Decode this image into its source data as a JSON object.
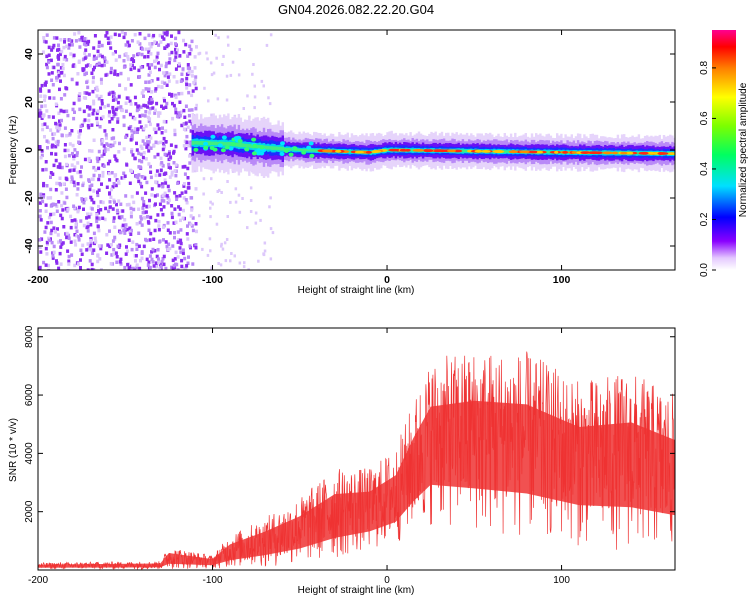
{
  "title": "GN04.2026.082.22.20.G04",
  "chart_data": [
    {
      "type": "heatmap",
      "name": "spectrogram",
      "xlabel": "Height of straight line (km)",
      "ylabel": "Frequency (Hz)",
      "xlim": [
        -200,
        165
      ],
      "ylim": [
        -50,
        50
      ],
      "xticks": [
        -200,
        -100,
        0,
        100
      ],
      "yticks": [
        -40,
        -20,
        0,
        20,
        40
      ],
      "colorbar": {
        "label": "Normalized spectral amplitude",
        "range": [
          0,
          0.95
        ],
        "ticks": [
          "0.0",
          "0.2",
          "0.4",
          "0.6",
          "0.8"
        ]
      },
      "signal_band": {
        "center_hz": [
          {
            "x": -110,
            "f": 3
          },
          {
            "x": -90,
            "f": 2.5
          },
          {
            "x": -70,
            "f": 1
          },
          {
            "x": -50,
            "f": 0
          },
          {
            "x": -10,
            "f": -1
          },
          {
            "x": 0,
            "f": 0
          },
          {
            "x": 50,
            "f": -0.5
          },
          {
            "x": 100,
            "f": -1
          },
          {
            "x": 165,
            "f": -1.5
          }
        ],
        "noise_region_until_km": -110
      }
    },
    {
      "type": "line",
      "name": "snr",
      "xlabel": "Height of straight line (km)",
      "ylabel": "SNR (10 * v/v)",
      "xlim": [
        -200,
        165
      ],
      "ylim": [
        0,
        8300
      ],
      "xticks": [
        -200,
        -100,
        0,
        100
      ],
      "yticks": [
        2000,
        4000,
        6000,
        8000
      ],
      "color": "#ee3333",
      "envelope": [
        {
          "x": -200,
          "low": 20,
          "high": 250
        },
        {
          "x": -130,
          "low": 20,
          "high": 300
        },
        {
          "x": -125,
          "low": 20,
          "high": 800
        },
        {
          "x": -100,
          "low": 50,
          "high": 500
        },
        {
          "x": -90,
          "low": 50,
          "high": 1200
        },
        {
          "x": -70,
          "low": 80,
          "high": 1800
        },
        {
          "x": -50,
          "low": 150,
          "high": 2500
        },
        {
          "x": -30,
          "low": 300,
          "high": 3500
        },
        {
          "x": -10,
          "low": 600,
          "high": 3500
        },
        {
          "x": 5,
          "low": 800,
          "high": 4200
        },
        {
          "x": 15,
          "low": 1200,
          "high": 5800
        },
        {
          "x": 25,
          "low": 1500,
          "high": 7200
        },
        {
          "x": 50,
          "low": 1200,
          "high": 7600
        },
        {
          "x": 80,
          "low": 1000,
          "high": 7500
        },
        {
          "x": 110,
          "low": 800,
          "high": 6500
        },
        {
          "x": 140,
          "low": 600,
          "high": 6800
        },
        {
          "x": 165,
          "low": 500,
          "high": 6000
        }
      ]
    }
  ]
}
